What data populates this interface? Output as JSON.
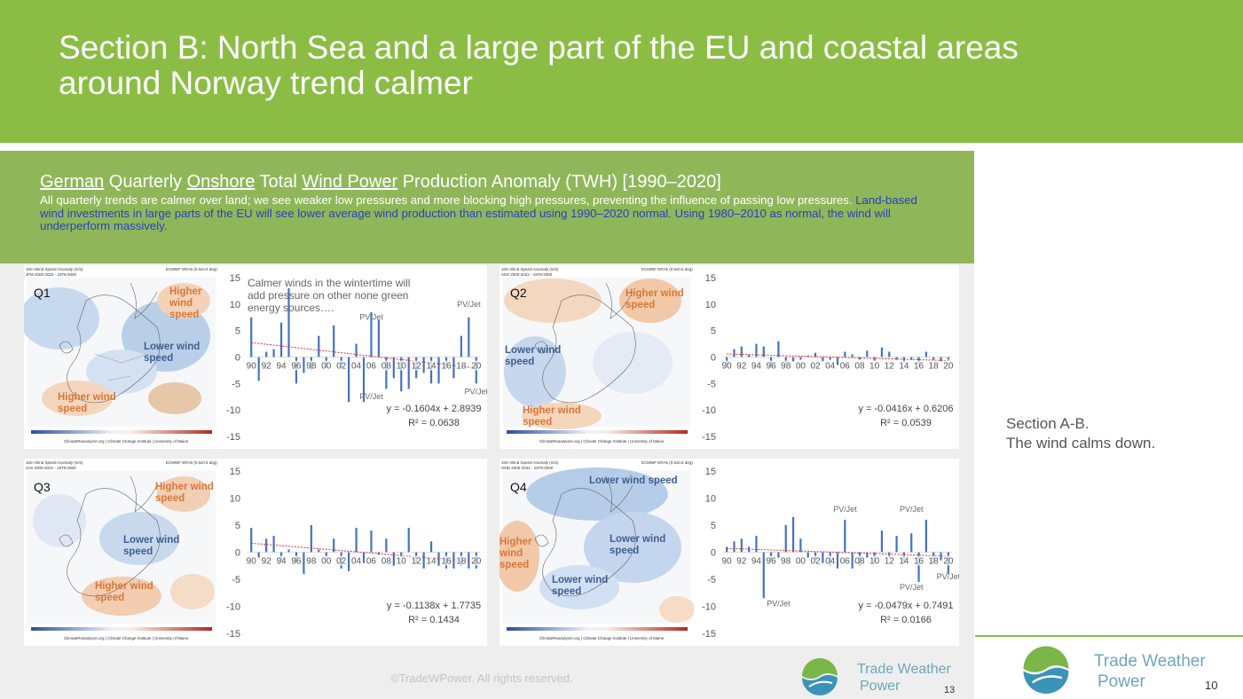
{
  "header": {
    "title_line1": "Section B: North Sea and a large part of the EU and coastal areas",
    "title_line2": "around Norway trend calmer"
  },
  "slide": {
    "title_parts": [
      "German",
      " Quarterly ",
      "Onshore",
      " Total ",
      "Wind Power",
      " Production Anomaly (TWH) [1990–2020]"
    ],
    "desc_white": "All quarterly trends are calmer over land; we see weaker low pressures and more blocking high pressures, preventing the influence of passing low pressures.",
    "desc_blue": "Land-based wind investments in large parts of the EU will see lower average wind production than estimated using 1990–2020 normal. Using 1980–2010 as normal, the wind will underperform massively.",
    "copyright": "©TradeWPower. All rights reserved.",
    "logo_line1": "Trade Weather",
    "logo_line2": "Power",
    "page_number": "13"
  },
  "maps": [
    {
      "q": "Q1",
      "title": "10m Wind Speed Anomaly (m/s)",
      "sub": "JFM 2000-2022 - 1979-2000",
      "source": "ECMWF ERA5 (0.5x0.5 deg)",
      "credit": "ClimateReanalyzer.org | Climate Change Institute | University of Maine",
      "labels": [
        {
          "t": "Higher wind speed",
          "c": "orange"
        },
        {
          "t": "Lower wind speed",
          "c": "navy"
        },
        {
          "t": "Higher wind speed",
          "c": "orange"
        }
      ]
    },
    {
      "q": "Q2",
      "title": "10m Wind Speed Anomaly (m/s)",
      "sub": "AMJ 2000-2022 - 1979-2000",
      "source": "ECMWF ERA5 (0.5x0.5 deg)",
      "credit": "ClimateReanalyzer.org | Climate Change Institute | University of Maine",
      "labels": [
        {
          "t": "Higher wind speed",
          "c": "orange"
        },
        {
          "t": "Lower wind speed",
          "c": "navy"
        },
        {
          "t": "Higher wind speed",
          "c": "orange"
        }
      ]
    },
    {
      "q": "Q3",
      "title": "10m Wind Speed Anomaly (m/s)",
      "sub": "JAS 2000-2022 - 1979-2000",
      "source": "ECMWF ERA5 (0.5x0.5 deg)",
      "credit": "ClimateReanalyzer.org | Climate Change Institute | University of Maine",
      "labels": [
        {
          "t": "Higher wind speed",
          "c": "orange"
        },
        {
          "t": "Lower wind speed",
          "c": "navy"
        },
        {
          "t": "Higher wind speed",
          "c": "orange"
        }
      ]
    },
    {
      "q": "Q4",
      "title": "10m Wind Speed Anomaly (m/s)",
      "sub": "OND 2000-2022 - 1979-2000",
      "source": "ECMWF ERA5 (0.5x0.5 deg)",
      "credit": "ClimateReanalyzer.org | Climate Change Institute | University of Maine",
      "labels": [
        {
          "t": "Lower wind speed",
          "c": "navy"
        },
        {
          "t": "Higher wind speed",
          "c": "orange"
        },
        {
          "t": "Lower wind speed",
          "c": "navy"
        },
        {
          "t": "Lower wind speed",
          "c": "navy"
        }
      ]
    }
  ],
  "chart_data": [
    {
      "type": "bar",
      "title": "",
      "ylim": [
        -15,
        15
      ],
      "yticks": [
        15,
        10,
        5,
        0,
        -5,
        -10,
        -15
      ],
      "x": [
        1990,
        1991,
        1992,
        1993,
        1994,
        1995,
        1996,
        1997,
        1998,
        1999,
        2000,
        2001,
        2002,
        2003,
        2004,
        2005,
        2006,
        2007,
        2008,
        2009,
        2010,
        2011,
        2012,
        2013,
        2014,
        2015,
        2016,
        2017,
        2018,
        2019,
        2020
      ],
      "xtick_labels": [
        "90",
        "92",
        "94",
        "96",
        "98",
        "00",
        "02",
        "04",
        "06",
        "08",
        "10",
        "12",
        "14",
        "16",
        "18",
        "20"
      ],
      "values": [
        7.5,
        -4.5,
        1,
        1.5,
        6.5,
        13,
        -5,
        -3,
        -2.5,
        4,
        -2,
        6,
        -2,
        -8.5,
        2.5,
        -8.5,
        8.5,
        7,
        -6,
        -4,
        -6.5,
        -6,
        -4,
        -3,
        -5,
        -5,
        -2,
        -4,
        4,
        7.5,
        -5
      ],
      "trend": {
        "slope": -0.1604,
        "intercept": 2.8939
      },
      "equation": "y = -0.1604x + 2.8939",
      "r2": "R² = 0.0638",
      "annotations": [
        {
          "text": "Calmer winds in the wintertime will add pressure on other none green energy sources…."
        },
        {
          "text": "PV/Jet",
          "x": 2006,
          "y": 7
        },
        {
          "text": "PV/Jet",
          "x": 2006,
          "y": -8
        },
        {
          "text": "PV/Jet",
          "x": 2019,
          "y": 9.5
        },
        {
          "text": "PV/Jet",
          "x": 2020,
          "y": -7
        }
      ]
    },
    {
      "type": "bar",
      "title": "",
      "ylim": [
        -15,
        15
      ],
      "yticks": [
        15,
        10,
        5,
        0,
        -5,
        -10,
        -15
      ],
      "x": [
        1990,
        1991,
        1992,
        1993,
        1994,
        1995,
        1996,
        1997,
        1998,
        1999,
        2000,
        2001,
        2002,
        2003,
        2004,
        2005,
        2006,
        2007,
        2008,
        2009,
        2010,
        2011,
        2012,
        2013,
        2014,
        2015,
        2016,
        2017,
        2018,
        2019,
        2020
      ],
      "xtick_labels": [
        "90",
        "92",
        "94",
        "96",
        "98",
        "00",
        "02",
        "04",
        "06",
        "08",
        "10",
        "12",
        "14",
        "16",
        "18",
        "20"
      ],
      "values": [
        -1.5,
        1.5,
        2,
        0.5,
        2.5,
        2,
        -2,
        3,
        -1,
        -0.8,
        -0.5,
        0.3,
        0.8,
        -0.8,
        -0.5,
        -1.5,
        1,
        0.5,
        -0.5,
        1.2,
        -0.7,
        1.8,
        1,
        -0.5,
        -1,
        -0.5,
        -1.2,
        1,
        -0.5,
        -0.8,
        -0.5
      ],
      "trend": {
        "slope": -0.0416,
        "intercept": 0.6206
      },
      "equation": "y = -0.0416x + 0.6206",
      "r2": "R² = 0.0539",
      "annotations": []
    },
    {
      "type": "bar",
      "title": "",
      "ylim": [
        -15,
        15
      ],
      "yticks": [
        15,
        10,
        5,
        0,
        -5,
        -10,
        -15
      ],
      "x": [
        1990,
        1991,
        1992,
        1993,
        1994,
        1995,
        1996,
        1997,
        1998,
        1999,
        2000,
        2001,
        2002,
        2003,
        2004,
        2005,
        2006,
        2007,
        2008,
        2009,
        2010,
        2011,
        2012,
        2013,
        2014,
        2015,
        2016,
        2017,
        2018,
        2019,
        2020
      ],
      "xtick_labels": [
        "90",
        "92",
        "94",
        "96",
        "98",
        "00",
        "02",
        "04",
        "06",
        "08",
        "10",
        "12",
        "14",
        "16",
        "18",
        "20"
      ],
      "values": [
        4.5,
        -1,
        2.5,
        3,
        -1.5,
        0.5,
        -2,
        -4,
        5,
        0.5,
        -1,
        2.5,
        -3,
        -3.5,
        4.5,
        -2,
        4,
        -0.5,
        2.5,
        -2.5,
        -1,
        4.5,
        -2,
        -3,
        2,
        -2.5,
        -3,
        -3,
        -2.5,
        -3,
        -3
      ],
      "trend": {
        "slope": -0.1138,
        "intercept": 1.7735
      },
      "equation": "y = -0.1138x + 1.7735",
      "r2": "R² = 0.1434",
      "annotations": []
    },
    {
      "type": "bar",
      "title": "",
      "ylim": [
        -15,
        15
      ],
      "yticks": [
        15,
        10,
        5,
        0,
        -5,
        -10,
        -15
      ],
      "x": [
        1990,
        1991,
        1992,
        1993,
        1994,
        1995,
        1996,
        1997,
        1998,
        1999,
        2000,
        2001,
        2002,
        2003,
        2004,
        2005,
        2006,
        2007,
        2008,
        2009,
        2010,
        2011,
        2012,
        2013,
        2014,
        2015,
        2016,
        2017,
        2018,
        2019,
        2020
      ],
      "xtick_labels": [
        "90",
        "92",
        "94",
        "96",
        "98",
        "00",
        "02",
        "04",
        "06",
        "08",
        "10",
        "12",
        "14",
        "16",
        "18",
        "20"
      ],
      "values": [
        1,
        2,
        2.5,
        1,
        3,
        -8.5,
        -1.5,
        -1,
        5,
        6.5,
        2.5,
        -1,
        -1.5,
        -2,
        -2.5,
        -3,
        6,
        -3,
        -2.5,
        -1,
        -2,
        4,
        -1,
        3,
        -2,
        3.5,
        -5.5,
        6,
        -2,
        -1.5,
        -4
      ],
      "trend": {
        "slope": -0.0479,
        "intercept": 0.7491
      },
      "equation": "y = -0.0479x + 0.7491",
      "r2": "R² = 0.0166",
      "annotations": [
        {
          "text": "PV/Jet",
          "x": 2006,
          "y": 7.5
        },
        {
          "text": "PV/Jet",
          "x": 2015,
          "y": 7.5
        },
        {
          "text": "PV/Jet",
          "x": 1997,
          "y": -10
        },
        {
          "text": "PV/Jet",
          "x": 2015,
          "y": -7
        },
        {
          "text": "PV/Jet",
          "x": 2020,
          "y": -5
        }
      ]
    }
  ],
  "side": {
    "line1": "Section A-B.",
    "line2": "The wind calms down.",
    "logo_line1": "Trade Weather",
    "logo_line2": "Power",
    "page_number": "10"
  },
  "colors": {
    "header_green": "#8bbd45",
    "subhead_green": "#8fb75a",
    "bar_blue": "#4472c4",
    "trend_red": "#e03030",
    "orange_label": "#d8763a",
    "navy_label": "#3f5f90"
  }
}
